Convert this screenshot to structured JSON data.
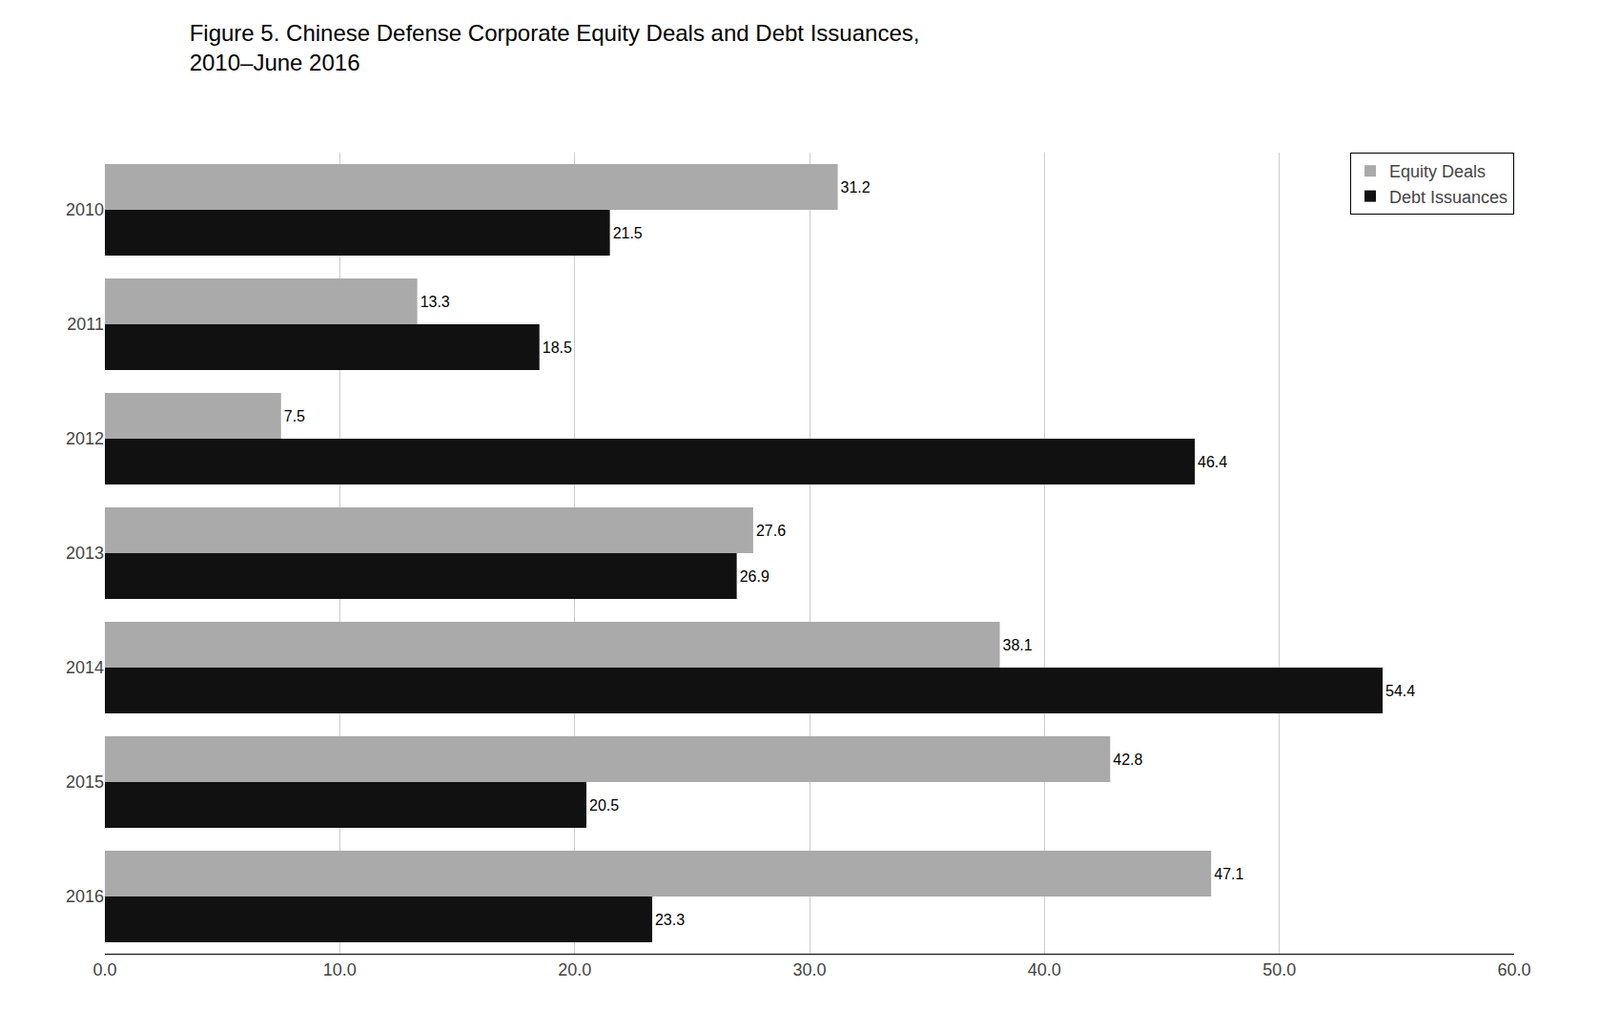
{
  "chart_data": {
    "type": "bar",
    "orientation": "horizontal",
    "title": "Figure 5. Chinese Defense Corporate Equity Deals and Debt Issuances,\n2010–June 2016",
    "categories": [
      "2010",
      "2011",
      "2012",
      "2013",
      "2014",
      "2015",
      "2016"
    ],
    "series": [
      {
        "name": "Equity Deals",
        "color": "#aaaaaa",
        "values": [
          31.2,
          13.3,
          7.5,
          27.6,
          38.1,
          42.8,
          47.1
        ]
      },
      {
        "name": "Debt Issuances",
        "color": "#111111",
        "values": [
          21.5,
          18.5,
          46.4,
          26.9,
          54.4,
          20.5,
          23.3
        ]
      }
    ],
    "xlim": [
      0,
      60
    ],
    "xticks": [
      {
        "value": 0,
        "label": "0.0"
      },
      {
        "value": 10,
        "label": "10.0"
      },
      {
        "value": 20,
        "label": "20.0"
      },
      {
        "value": 30,
        "label": "30.0"
      },
      {
        "value": 40,
        "label": "40.0"
      },
      {
        "value": 50,
        "label": "50.0"
      },
      {
        "value": 60,
        "label": "60.0"
      }
    ],
    "grid": true,
    "legend": "upper right",
    "data_labels": true
  }
}
